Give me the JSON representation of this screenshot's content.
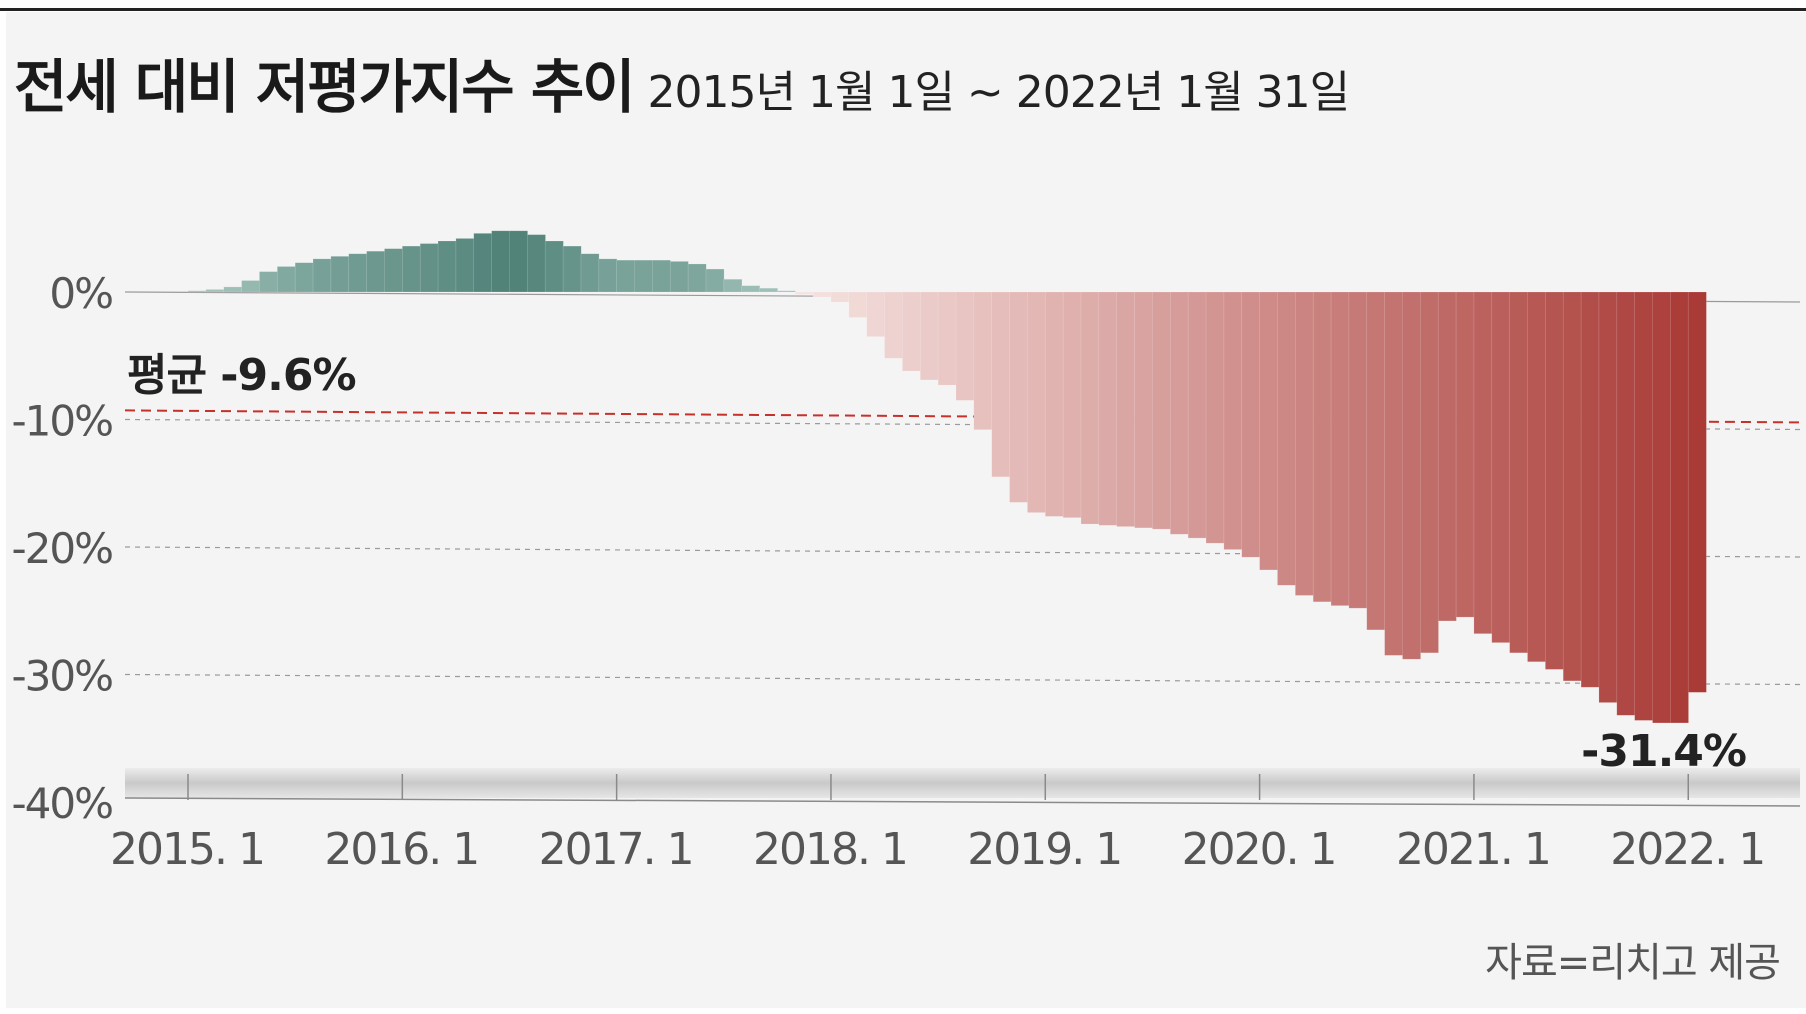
{
  "header": {
    "title": "전세 대비 저평가지수 추이",
    "subtitle": "2015년 1월 1일 ~ 2022년 1월 31일"
  },
  "source": "자료=리치고 제공",
  "colors": {
    "positive": "#5a8a80",
    "negative_light": "#f7e6e4",
    "negative_dark": "#a93a36",
    "average_line": "#c8302c",
    "background": "#f4f4f4"
  },
  "chart_data": {
    "type": "bar",
    "title": "전세 대비 저평가지수 추이",
    "subtitle": "2015년 1월 1일 ~ 2022년 1월 31일",
    "xlabel": "",
    "ylabel": "",
    "ylim": [
      -40,
      10
    ],
    "yticks": [
      0,
      -10,
      -20,
      -30,
      -40
    ],
    "ytick_labels": [
      "0%",
      "-10%",
      "-20%",
      "-30%",
      "-40%"
    ],
    "xtick_labels": [
      "2015. 1",
      "2016. 1",
      "2017. 1",
      "2018. 1",
      "2019. 1",
      "2020. 1",
      "2021. 1",
      "2022. 1"
    ],
    "xtick_index": [
      0,
      12,
      24,
      36,
      48,
      60,
      72,
      84
    ],
    "values": [
      0.1,
      0.2,
      0.4,
      0.9,
      1.6,
      2.0,
      2.3,
      2.6,
      2.8,
      3.0,
      3.2,
      3.4,
      3.6,
      3.8,
      4.0,
      4.2,
      4.6,
      4.8,
      4.8,
      4.5,
      4.0,
      3.6,
      3.0,
      2.6,
      2.5,
      2.5,
      2.5,
      2.4,
      2.2,
      1.8,
      1.0,
      0.5,
      0.3,
      0.1,
      -0.2,
      -0.4,
      -0.8,
      -2.0,
      -3.5,
      -5.2,
      -6.2,
      -6.9,
      -7.3,
      -8.5,
      -10.8,
      -14.5,
      -16.5,
      -17.3,
      -17.6,
      -17.7,
      -18.2,
      -18.3,
      -18.4,
      -18.5,
      -18.6,
      -19.0,
      -19.3,
      -19.7,
      -20.2,
      -20.8,
      -21.8,
      -23.0,
      -23.8,
      -24.3,
      -24.6,
      -24.8,
      -26.5,
      -28.5,
      -28.8,
      -28.3,
      -25.8,
      -25.5,
      -26.8,
      -27.5,
      -28.3,
      -29.0,
      -29.6,
      -30.5,
      -31.0,
      -32.2,
      -33.2,
      -33.6,
      -33.8,
      -33.8,
      -31.4
    ],
    "average": -9.6,
    "annotations": [
      {
        "label": "평균 -9.6%",
        "value": -9.6
      },
      {
        "label": "-31.4%",
        "value": -31.4
      }
    ]
  }
}
